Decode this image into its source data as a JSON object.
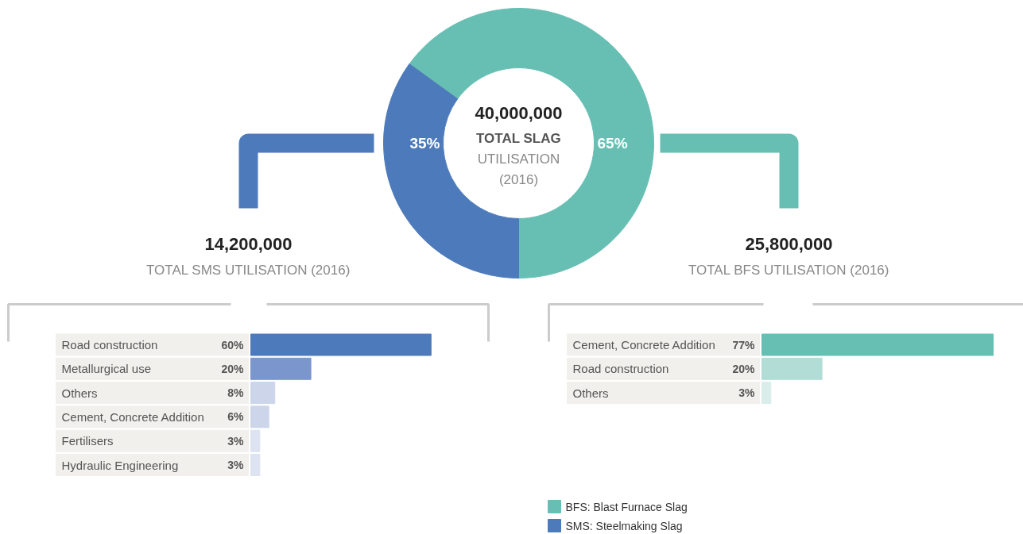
{
  "chart_data": [
    {
      "type": "donut",
      "title": "40,000,000",
      "subtitle": "TOTAL SLAG\nUTILISATION\n(2016)",
      "categories": [
        "BFS: Blast Furnace Slag",
        "SMS: Steelmaking Slag"
      ],
      "values": [
        65,
        35
      ],
      "colors": [
        "#67bfb3",
        "#4d7aba"
      ],
      "value_labels": [
        "65%",
        "35%"
      ],
      "legend": "bottom"
    },
    {
      "type": "bar",
      "orientation": "horizontal",
      "title": "14,200,000",
      "subtitle": "TOTAL SMS UTILISATION (2016)",
      "categories": [
        "Road construction",
        "Metallurgical use",
        "Others",
        "Cement, Concrete Addition",
        "Fertilisers",
        "Hydraulic Engineering"
      ],
      "values": [
        60,
        20,
        8,
        6,
        3,
        3
      ],
      "colors": [
        "#4d7aba",
        "#7b96cc",
        "#ccd5ea",
        "#ccd5ea",
        "#dde3f1",
        "#dde3f1"
      ],
      "value_labels": [
        "60%",
        "20%",
        "8%",
        "6%",
        "3%",
        "3%"
      ]
    },
    {
      "type": "bar",
      "orientation": "horizontal",
      "title": "25,800,000",
      "subtitle": "TOTAL BFS UTILISATION (2016)",
      "categories": [
        "Cement, Concrete Addition",
        "Road construction",
        "Others"
      ],
      "values": [
        77,
        20,
        3
      ],
      "colors": [
        "#67bfb3",
        "#b2ddd6",
        "#d9eeeb"
      ],
      "value_labels": [
        "77%",
        "20%",
        "3%"
      ]
    }
  ]
}
